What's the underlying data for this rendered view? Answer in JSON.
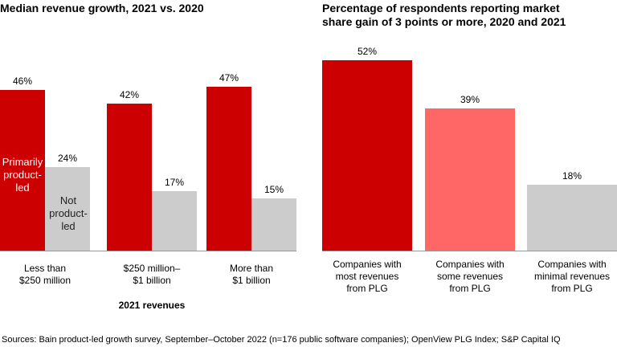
{
  "chart_data": [
    {
      "type": "bar",
      "title": "Median revenue growth, 2021 vs. 2020",
      "x_label": "2021 revenues",
      "categories": [
        "Less than\n$250 million",
        "$250 million–\n$1 billion",
        "More than\n$1 billion"
      ],
      "series": [
        {
          "name": "Primarily product-led",
          "color": "#cc0000",
          "values": [
            46,
            42,
            47
          ],
          "value_labels": [
            "46%",
            "42%",
            "47%"
          ]
        },
        {
          "name": "Not product-led",
          "color": "#cccccc",
          "values": [
            24,
            17,
            15
          ],
          "value_labels": [
            "24%",
            "17%",
            "15%"
          ]
        }
      ]
    },
    {
      "type": "bar",
      "title": "Percentage of respondents reporting market share gain of 3 points or more, 2020 and 2021",
      "categories": [
        "Companies with\nmost revenues\nfrom PLG",
        "Companies with\nsome revenues\nfrom PLG",
        "Companies with\nminimal revenues\nfrom PLG"
      ],
      "values": [
        52,
        39,
        18
      ],
      "value_labels": [
        "52%",
        "39%",
        "18%"
      ],
      "colors": [
        "#cc0000",
        "#ff6666",
        "#cccccc"
      ]
    }
  ],
  "source": "Sources: Bain product-led growth survey, September–October 2022 (n=176 public software companies); OpenView PLG Index; S&P Capital IQ"
}
